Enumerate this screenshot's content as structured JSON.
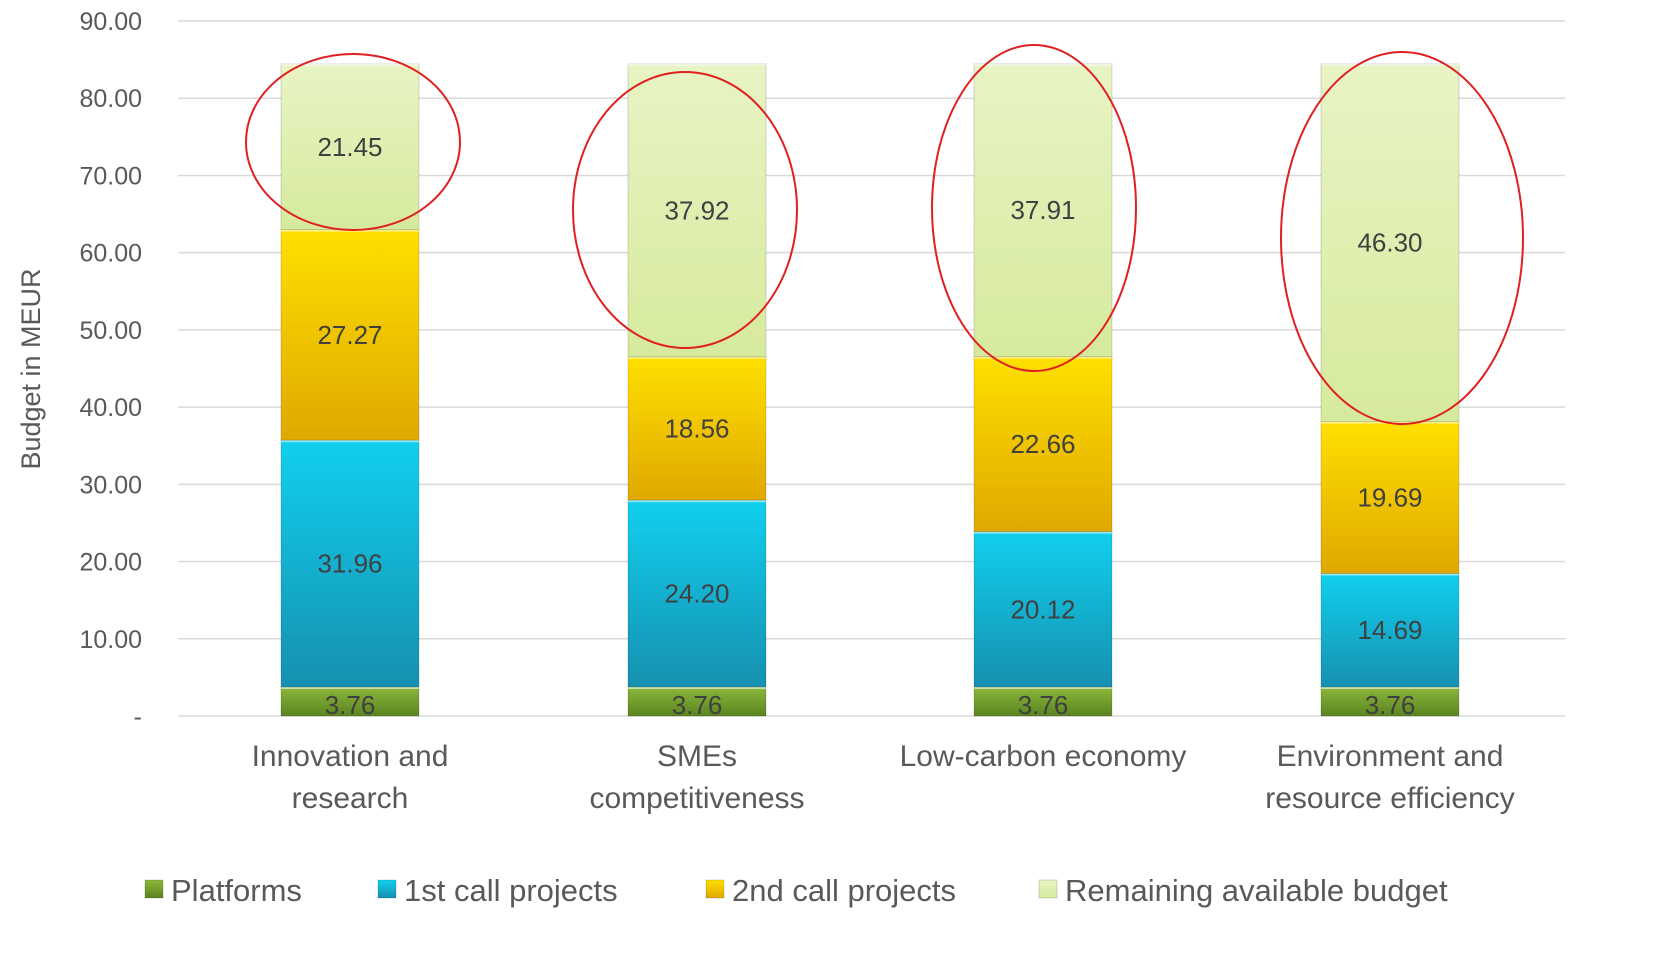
{
  "chart_data": {
    "type": "bar",
    "stacked": true,
    "ylabel": "Budget in MEUR",
    "xlabel": "",
    "ylim": [
      0,
      90
    ],
    "yticks": [
      {
        "value": 0,
        "label": "-"
      },
      {
        "value": 10,
        "label": "10.00"
      },
      {
        "value": 20,
        "label": "20.00"
      },
      {
        "value": 30,
        "label": "30.00"
      },
      {
        "value": 40,
        "label": "40.00"
      },
      {
        "value": 50,
        "label": "50.00"
      },
      {
        "value": 60,
        "label": "60.00"
      },
      {
        "value": 70,
        "label": "70.00"
      },
      {
        "value": 80,
        "label": "80.00"
      },
      {
        "value": 90,
        "label": "90.00"
      }
    ],
    "grid": true,
    "legend_position": "bottom",
    "categories": [
      [
        "Innovation and",
        "research"
      ],
      [
        "SMEs",
        "competitiveness"
      ],
      [
        "Low-carbon economy"
      ],
      [
        "Environment and",
        "resource efficiency"
      ]
    ],
    "series": [
      {
        "name": "Platforms",
        "color": "#6e9a2a",
        "values": [
          3.76,
          3.76,
          3.76,
          3.76
        ],
        "labels": [
          "3.76",
          "3.76",
          "3.76",
          "3.76"
        ]
      },
      {
        "name": "1st call projects",
        "color": "#1ab6d6",
        "values": [
          31.96,
          24.2,
          20.12,
          14.69
        ],
        "labels": [
          "31.96",
          "24.20",
          "20.12",
          "14.69"
        ]
      },
      {
        "name": "2nd call projects",
        "color": "#f2c200",
        "values": [
          27.27,
          18.56,
          22.66,
          19.69
        ],
        "labels": [
          "27.27",
          "18.56",
          "22.66",
          "19.69"
        ]
      },
      {
        "name": "Remaining available budget",
        "color": "#ddeeb0",
        "values": [
          21.45,
          37.92,
          37.91,
          46.3
        ],
        "labels": [
          "21.45",
          "37.92",
          "37.91",
          "46.30"
        ]
      }
    ],
    "annotations": {
      "highlight_color": "#e02020",
      "highlighted_series": "Remaining available budget"
    }
  }
}
